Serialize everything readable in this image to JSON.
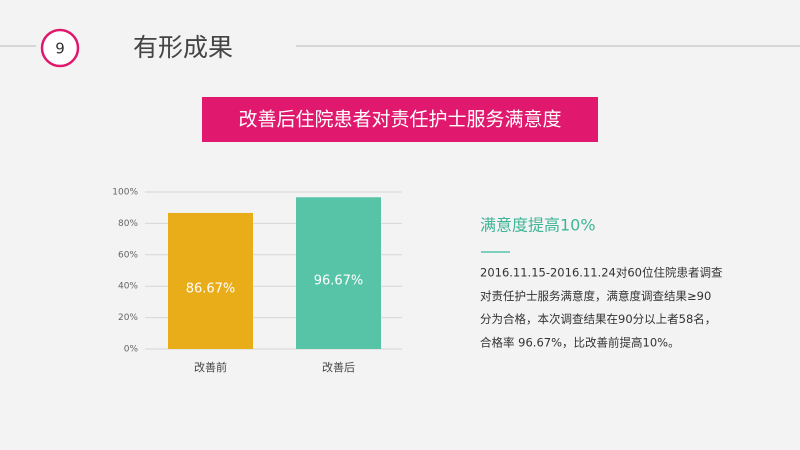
{
  "slide": {
    "number": "9",
    "title": "有形成果",
    "banner": "改善后住院患者对责任护士服务满意度",
    "note_title": "满意度提高10%",
    "note_lines": [
      "2016.11.15-2016.11.24对60位住院患者调查",
      "对责任护士服务满意度，满意度调查结果≥90",
      "分为合格，本次调查结果在90分以上者58名，",
      "合格率 96.67%，比改善前提高10%。"
    ]
  },
  "chart_data": {
    "type": "bar",
    "categories": [
      "改善前",
      "改善后"
    ],
    "values": [
      86.67,
      96.67
    ],
    "value_labels": [
      "86.67%",
      "96.67%"
    ],
    "colors": [
      "#e8ad18",
      "#58c4a7"
    ],
    "ylim": [
      0,
      100
    ],
    "yticks": [
      {
        "value": 0,
        "label": "0%"
      },
      {
        "value": 20,
        "label": "20%"
      },
      {
        "value": 40,
        "label": "40%"
      },
      {
        "value": 60,
        "label": "60%"
      },
      {
        "value": 80,
        "label": "80%"
      },
      {
        "value": 100,
        "label": "100%"
      }
    ],
    "grid": true
  }
}
